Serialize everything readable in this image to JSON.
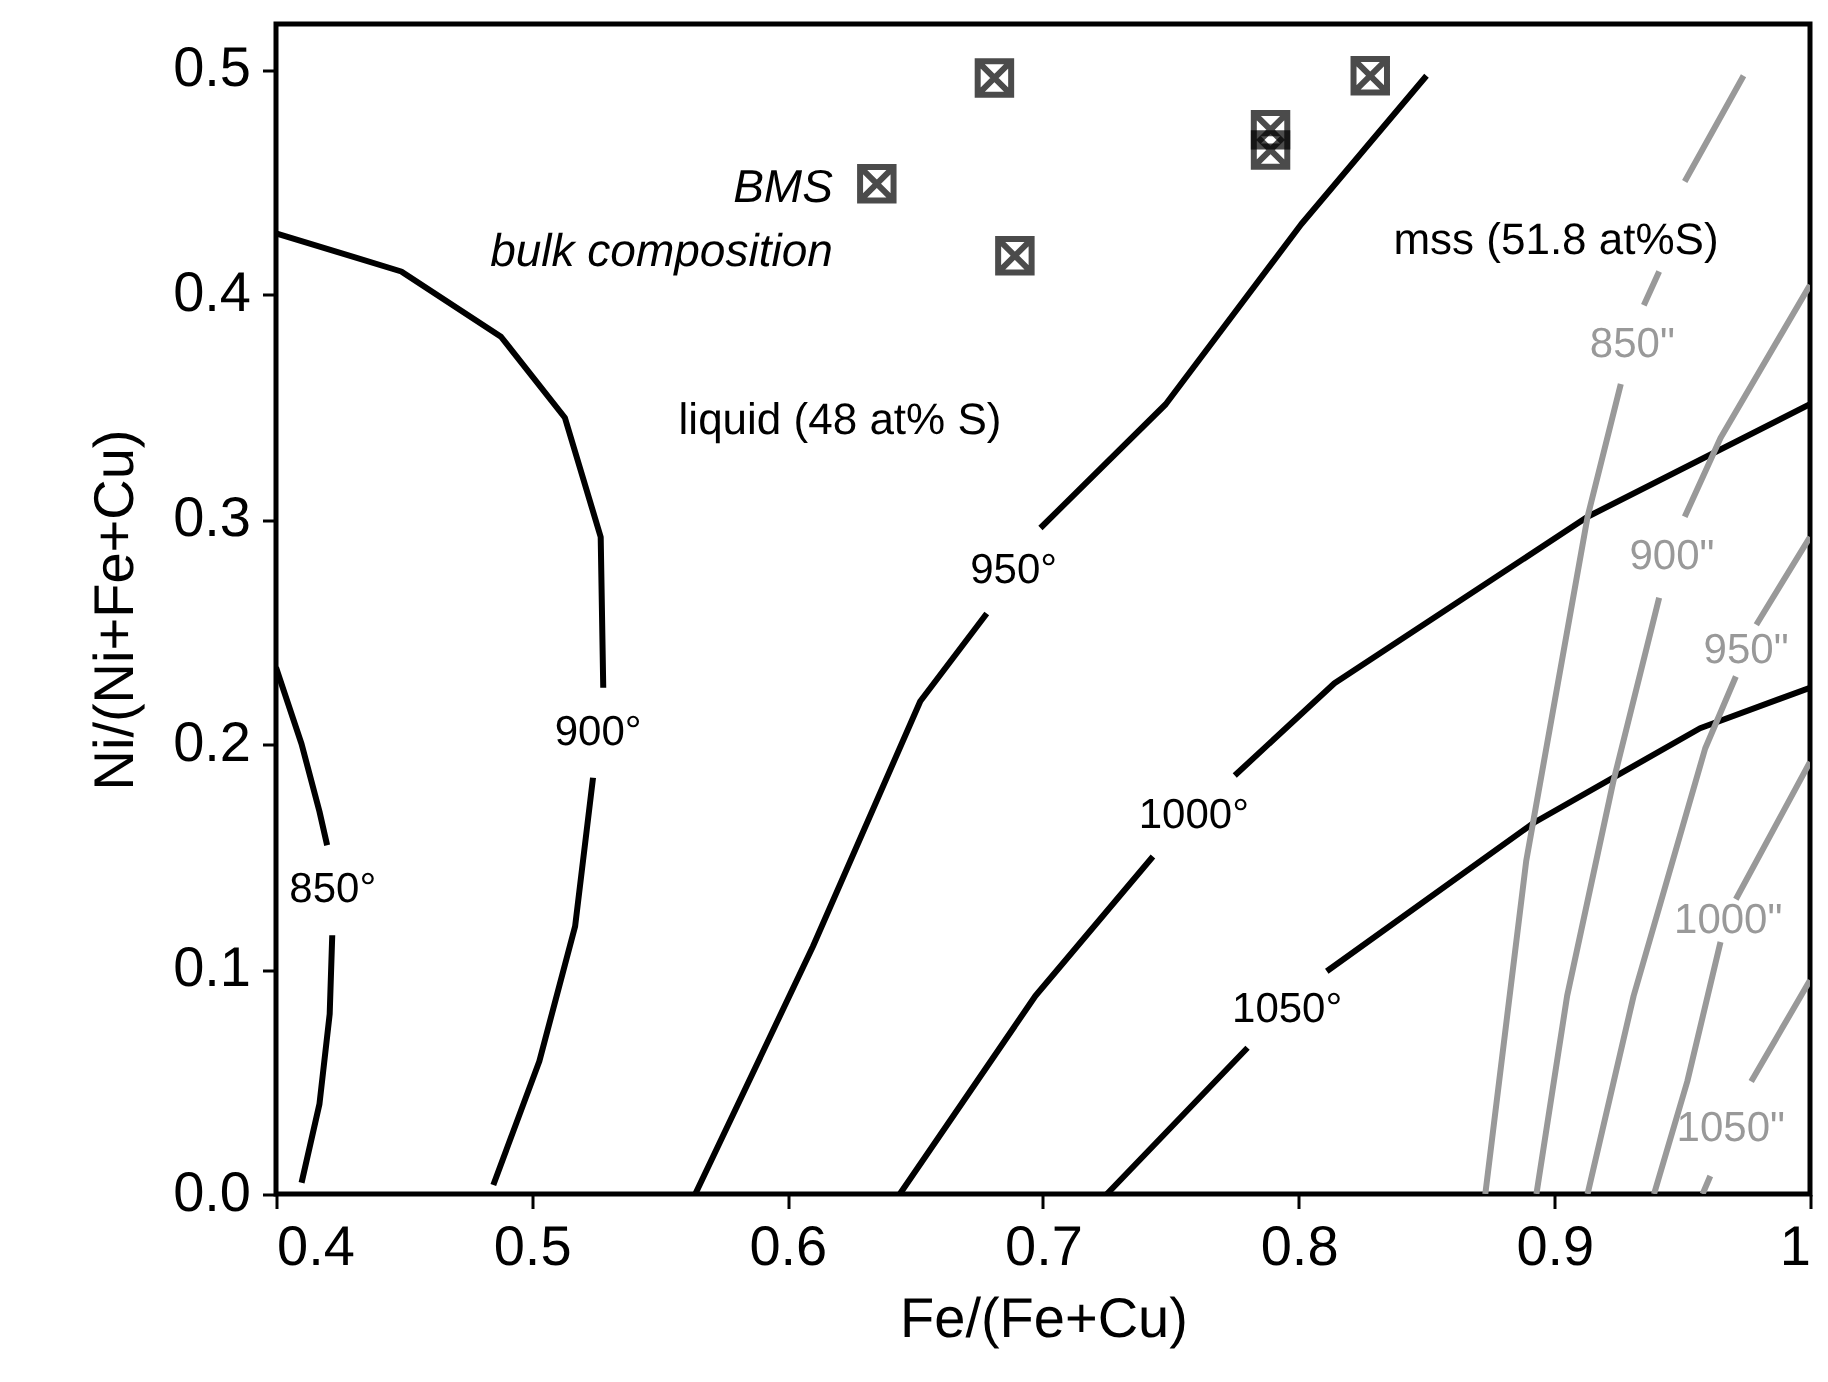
{
  "chart_data": {
    "type": "line",
    "xlabel": "Fe/(Fe+Cu)",
    "ylabel": "Ni/(Ni+Fe+Cu)",
    "xlim": [
      0.4,
      1
    ],
    "ylim": [
      0,
      0.52
    ],
    "xticks": [
      0.4,
      0.5,
      0.6,
      0.7,
      0.8,
      0.9,
      1
    ],
    "yticks": [
      {
        "value": 0,
        "label": "0.0"
      },
      0.1,
      0.2,
      0.3,
      0.4,
      0.5
    ],
    "grid": false,
    "line_style": "solid",
    "series": [
      {
        "name": "850°",
        "color": "#000000",
        "x": [
          0.4,
          0.41,
          0.417,
          0.42,
          null,
          0.422,
          0.421,
          0.417,
          0.41
        ],
        "values": [
          0.234,
          0.2,
          0.17,
          0.155,
          null,
          0.115,
          0.08,
          0.04,
          0.005
        ]
      },
      {
        "name": "900°",
        "color": "#000000",
        "x": [
          0.4,
          0.449,
          0.488,
          0.513,
          0.527,
          0.528,
          null,
          0.524,
          0.517,
          0.503,
          0.485
        ],
        "values": [
          0.427,
          0.41,
          0.381,
          0.345,
          0.292,
          0.225,
          null,
          0.185,
          0.119,
          0.059,
          0.004
        ]
      },
      {
        "name": "950°",
        "color": "#000000",
        "x": [
          0.564,
          0.61,
          0.652,
          0.678,
          null,
          0.699,
          0.748,
          0.801,
          0.85
        ],
        "values": [
          0,
          0.11,
          0.219,
          0.258,
          null,
          0.296,
          0.351,
          0.431,
          0.497
        ]
      },
      {
        "name": "1000°",
        "color": "#000000",
        "x": [
          0.644,
          0.697,
          0.743,
          null,
          0.775,
          0.814,
          0.913,
          1
        ],
        "values": [
          0,
          0.088,
          0.15,
          null,
          0.186,
          0.227,
          0.301,
          0.351
        ]
      },
      {
        "name": "1050°",
        "color": "#000000",
        "x": [
          0.725,
          0.78,
          null,
          0.811,
          0.892,
          0.957,
          1
        ],
        "values": [
          0,
          0.065,
          null,
          0.099,
          0.165,
          0.207,
          0.225
        ]
      },
      {
        "name": "850\"",
        "color": "#999999",
        "x": [
          0.873,
          0.889,
          0.913,
          0.926,
          null,
          0.935,
          0.941,
          null,
          0.951,
          0.974
        ],
        "values": [
          0,
          0.148,
          0.301,
          0.36,
          null,
          0.395,
          0.41,
          null,
          0.45,
          0.497
        ]
      },
      {
        "name": "900\"",
        "color": "#999999",
        "x": [
          0.893,
          0.905,
          0.923,
          0.941,
          null,
          0.951,
          0.965,
          1
        ],
        "values": [
          0,
          0.088,
          0.183,
          0.265,
          null,
          0.301,
          0.336,
          0.404
        ]
      },
      {
        "name": "950\"",
        "color": "#999999",
        "x": [
          0.913,
          0.931,
          0.959,
          0.971,
          null,
          0.979,
          1
        ],
        "values": [
          0,
          0.088,
          0.198,
          0.23,
          null,
          0.253,
          0.292
        ]
      },
      {
        "name": "1000\"",
        "color": "#999999",
        "x": [
          0.939,
          0.952,
          0.965,
          null,
          0.971,
          1
        ],
        "values": [
          0,
          0.05,
          0.112,
          null,
          0.131,
          0.192
        ]
      },
      {
        "name": "1050\"",
        "color": "#999999",
        "x": [
          0.958,
          0.961,
          null,
          0.977,
          1
        ],
        "values": [
          0,
          0.008,
          null,
          0.05,
          0.095
        ]
      },
      {
        "name": "BMS bulk composition",
        "type": "scatter",
        "marker": "cross",
        "color": "#000000",
        "x": [
          0.635,
          0.681,
          0.689,
          0.789,
          0.789,
          0.828
        ],
        "values": [
          0.449,
          0.496,
          0.417,
          0.473,
          0.464,
          0.497
        ]
      }
    ],
    "annotations": [
      "liquid (48 at% S)",
      "mss (51.8 at%S)"
    ]
  }
}
